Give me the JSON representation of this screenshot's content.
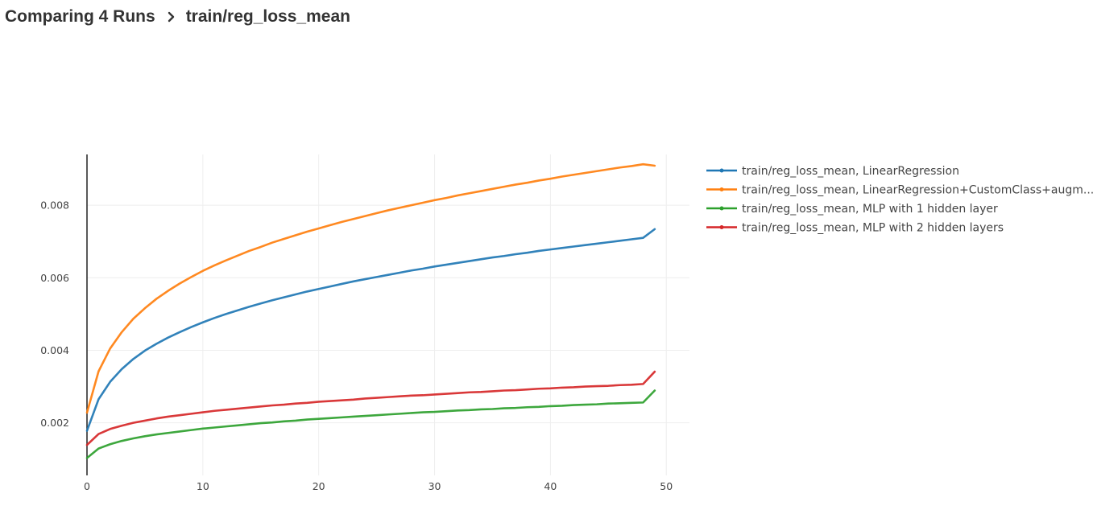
{
  "breadcrumb": {
    "parent": "Comparing 4 Runs",
    "current": "train/reg_loss_mean"
  },
  "chart_data": {
    "type": "line",
    "title": "",
    "xlabel": "",
    "ylabel": "",
    "xlim": [
      0,
      52
    ],
    "ylim": [
      0.00055,
      0.0094
    ],
    "xticks": [
      "0",
      "10",
      "20",
      "30",
      "40",
      "50"
    ],
    "yticks": [
      "0.002",
      "0.004",
      "0.006",
      "0.008"
    ],
    "xtick_values": [
      0,
      10,
      20,
      30,
      40,
      50
    ],
    "ytick_values": [
      0.002,
      0.004,
      0.006,
      0.008
    ],
    "grid": true,
    "legend_position": "right",
    "x": [
      0,
      1,
      2,
      3,
      4,
      5,
      6,
      7,
      8,
      9,
      10,
      11,
      12,
      13,
      14,
      15,
      16,
      17,
      18,
      19,
      20,
      21,
      22,
      23,
      24,
      25,
      26,
      27,
      28,
      29,
      30,
      31,
      32,
      33,
      34,
      35,
      36,
      37,
      38,
      39,
      40,
      41,
      42,
      43,
      44,
      45,
      46,
      47,
      48,
      49
    ],
    "series": [
      {
        "name": "train/reg_loss_mean, LinearRegression",
        "color": "#1f77b4",
        "values": [
          0.00178,
          0.00265,
          0.00313,
          0.00348,
          0.00376,
          0.00399,
          0.00418,
          0.00435,
          0.0045,
          0.00464,
          0.00477,
          0.00489,
          0.005,
          0.0051,
          0.0052,
          0.00529,
          0.00538,
          0.00546,
          0.00554,
          0.00562,
          0.00569,
          0.00576,
          0.00583,
          0.0059,
          0.00596,
          0.00602,
          0.00608,
          0.00614,
          0.0062,
          0.00625,
          0.00631,
          0.00636,
          0.00641,
          0.00646,
          0.00651,
          0.00656,
          0.0066,
          0.00665,
          0.00669,
          0.00674,
          0.00678,
          0.00682,
          0.00686,
          0.0069,
          0.00694,
          0.00698,
          0.00702,
          0.00706,
          0.0071,
          0.00734
        ]
      },
      {
        "name": "train/reg_loss_mean, LinearRegression+CustomClass+augm...",
        "color": "#ff7f0e",
        "values": [
          0.00228,
          0.00342,
          0.00405,
          0.0045,
          0.00487,
          0.00516,
          0.00542,
          0.00564,
          0.00584,
          0.00602,
          0.00619,
          0.00634,
          0.00648,
          0.00661,
          0.00674,
          0.00685,
          0.00697,
          0.00707,
          0.00717,
          0.00727,
          0.00736,
          0.00745,
          0.00754,
          0.00762,
          0.0077,
          0.00778,
          0.00786,
          0.00793,
          0.008,
          0.00807,
          0.00814,
          0.0082,
          0.00827,
          0.00833,
          0.00839,
          0.00845,
          0.00851,
          0.00857,
          0.00862,
          0.00868,
          0.00873,
          0.00879,
          0.00884,
          0.00889,
          0.00894,
          0.00899,
          0.00904,
          0.00908,
          0.00913,
          0.00909
        ]
      },
      {
        "name": "train/reg_loss_mean, MLP with 1 hidden layer",
        "color": "#2ca02c",
        "values": [
          0.00103,
          0.00129,
          0.00141,
          0.0015,
          0.00157,
          0.00163,
          0.00168,
          0.00172,
          0.00176,
          0.0018,
          0.00184,
          0.00187,
          0.0019,
          0.00193,
          0.00196,
          0.00199,
          0.00201,
          0.00204,
          0.00206,
          0.00209,
          0.00211,
          0.00213,
          0.00215,
          0.00217,
          0.00219,
          0.00221,
          0.00223,
          0.00225,
          0.00227,
          0.00229,
          0.0023,
          0.00232,
          0.00234,
          0.00235,
          0.00237,
          0.00238,
          0.0024,
          0.00241,
          0.00243,
          0.00244,
          0.00246,
          0.00247,
          0.00249,
          0.0025,
          0.00251,
          0.00253,
          0.00254,
          0.00255,
          0.00256,
          0.00289
        ]
      },
      {
        "name": "train/reg_loss_mean, MLP with 2 hidden layers",
        "color": "#d62728",
        "values": [
          0.00139,
          0.00169,
          0.00183,
          0.00192,
          0.002,
          0.00206,
          0.00212,
          0.00217,
          0.00221,
          0.00225,
          0.00229,
          0.00233,
          0.00236,
          0.00239,
          0.00242,
          0.00245,
          0.00248,
          0.0025,
          0.00253,
          0.00255,
          0.00258,
          0.0026,
          0.00262,
          0.00264,
          0.00267,
          0.00269,
          0.00271,
          0.00273,
          0.00275,
          0.00276,
          0.00278,
          0.0028,
          0.00282,
          0.00284,
          0.00285,
          0.00287,
          0.00289,
          0.0029,
          0.00292,
          0.00294,
          0.00295,
          0.00297,
          0.00298,
          0.003,
          0.00301,
          0.00302,
          0.00304,
          0.00305,
          0.00307,
          0.00341
        ]
      }
    ]
  }
}
